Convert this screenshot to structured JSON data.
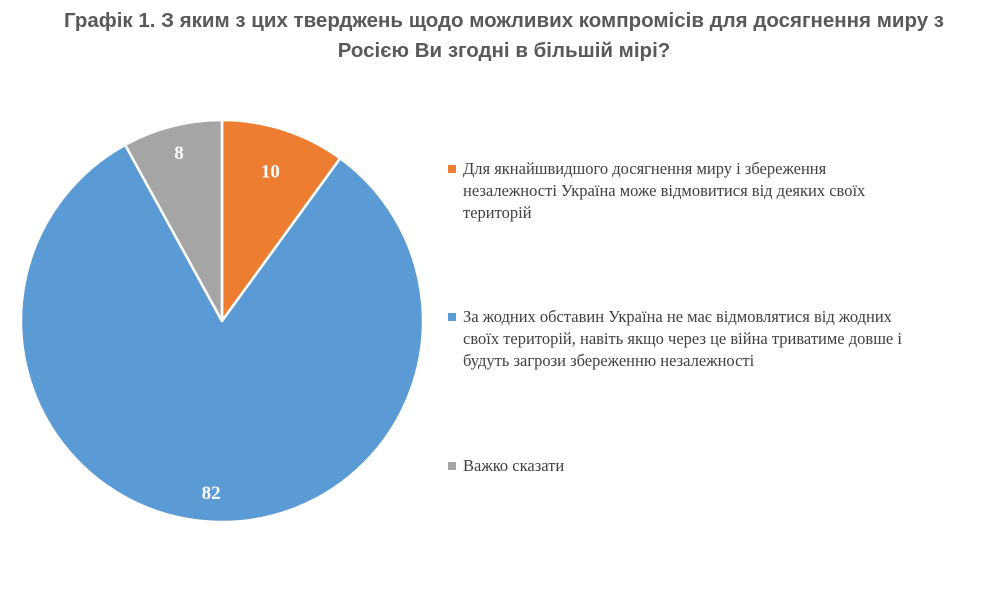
{
  "title_lines": [
    "Графік 1. З яким з цих тверджень щодо можливих компромісів для досягнення миру з",
    "Росією Ви згодні в більшій мірі?"
  ],
  "colors": {
    "orange": "#ED7D31",
    "blue": "#5B9BD5",
    "gray": "#A5A5A5",
    "title": "#595959",
    "text": "#404040"
  },
  "chart_data": {
    "type": "pie",
    "title": "Графік 1. З яким з цих тверджень щодо можливих компромісів для досягнення миру з Росією Ви згодні в більшій мірі?",
    "legend_position": "right",
    "slices": [
      {
        "label": "Для якнайшвидшого досягнення миру і збереження незалежності Україна може відмовитися від деяких своїх територій",
        "value": 10,
        "data_label": "10",
        "color": "#ED7D31"
      },
      {
        "label": "За жодних обставин Україна не має відмовлятися від жодних своїх територій, навіть якщо через це війна триватиме довше і будуть загрози збереженню незалежності",
        "value": 82,
        "data_label": "82",
        "color": "#5B9BD5"
      },
      {
        "label": "Важко сказати",
        "value": 8,
        "data_label": "8",
        "color": "#A5A5A5"
      }
    ]
  }
}
